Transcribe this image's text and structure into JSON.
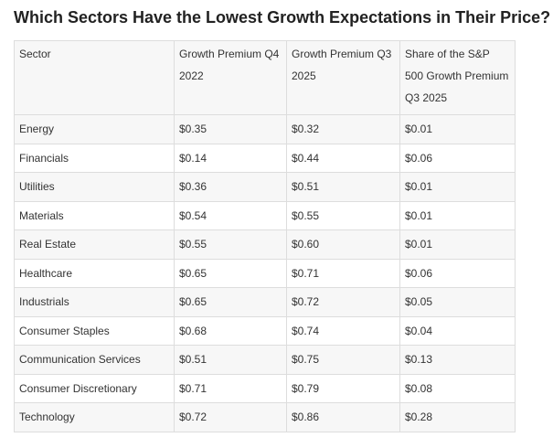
{
  "title": "Which Sectors Have the Lowest Growth Expectations in Their Price?",
  "table": {
    "headers": [
      "Sector",
      "Growth Premium Q4 2022",
      "Growth Premium Q3 2025",
      "Share of the S&P 500 Growth Premium Q3 2025"
    ],
    "rows": [
      [
        "Energy",
        "$0.35",
        "$0.32",
        "$0.01"
      ],
      [
        "Financials",
        "$0.14",
        "$0.44",
        "$0.06"
      ],
      [
        "Utilities",
        "$0.36",
        "$0.51",
        "$0.01"
      ],
      [
        "Materials",
        "$0.54",
        "$0.55",
        "$0.01"
      ],
      [
        "Real Estate",
        "$0.55",
        "$0.60",
        "$0.01"
      ],
      [
        "Healthcare",
        "$0.65",
        "$0.71",
        "$0.06"
      ],
      [
        "Industrials",
        "$0.65",
        "$0.72",
        "$0.05"
      ],
      [
        "Consumer Staples",
        "$0.68",
        "$0.74",
        "$0.04"
      ],
      [
        "Communication Services",
        "$0.51",
        "$0.75",
        "$0.13"
      ],
      [
        "Consumer Discretionary",
        "$0.71",
        "$0.79",
        "$0.08"
      ],
      [
        "Technology",
        "$0.72",
        "$0.86",
        "$0.28"
      ]
    ]
  }
}
